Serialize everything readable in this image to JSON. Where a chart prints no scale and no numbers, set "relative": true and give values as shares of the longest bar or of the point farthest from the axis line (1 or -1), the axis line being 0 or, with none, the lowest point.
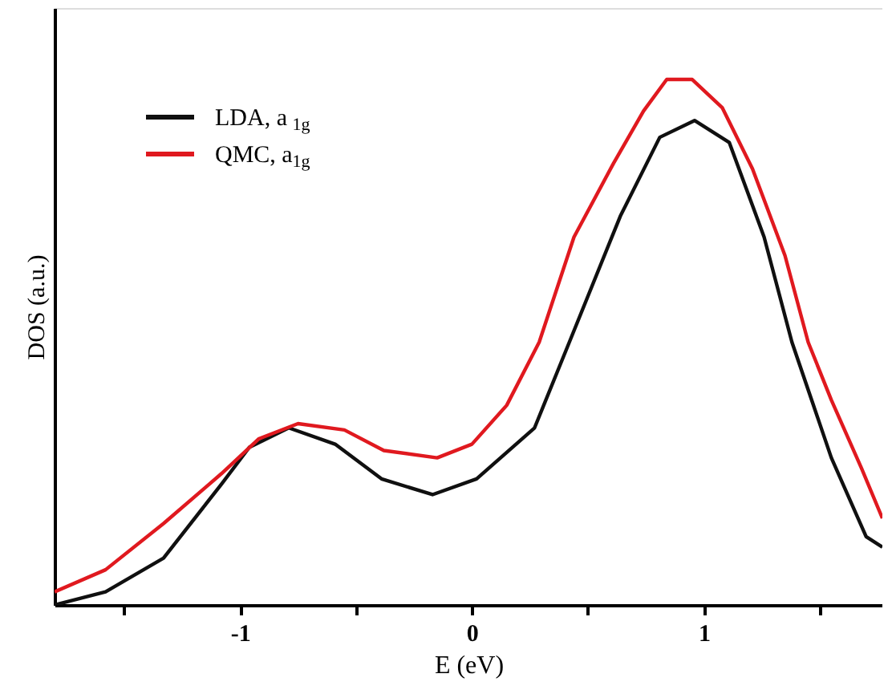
{
  "chart_data": {
    "type": "line",
    "relative": true,
    "xlabel": "E (eV)",
    "ylabel": "DOS (a.u.)",
    "xlim": [
      -1.8,
      1.77
    ],
    "xticks": [
      {
        "value": -1.5,
        "label": null
      },
      -1,
      {
        "value": -0.5,
        "label": null
      },
      0,
      {
        "value": 0.5,
        "label": null
      },
      1,
      {
        "value": 1.5,
        "label": null
      }
    ],
    "legend": "top left",
    "grid": false,
    "marker": "none",
    "line_style": "solid",
    "series": [
      {
        "name": "LDA, a$_{1g}$",
        "color": "#101010",
        "x": [
          -1.8,
          -1.58,
          -1.33,
          -1.08,
          -0.96,
          -0.79,
          -0.59,
          -0.39,
          -0.17,
          0.02,
          0.27,
          0.42,
          0.64,
          0.81,
          0.96,
          1.11,
          1.26,
          1.38,
          1.55,
          1.7,
          1.77
        ],
        "values": [
          0,
          0.025,
          0.089,
          0.23,
          0.3,
          0.337,
          0.306,
          0.24,
          0.21,
          0.24,
          0.337,
          0.5,
          0.74,
          0.89,
          0.922,
          0.88,
          0.7,
          0.5,
          0.28,
          0.13,
          0.11
        ]
      },
      {
        "name": "QMC, a$_{1g}$",
        "color": "#e0191f",
        "x": [
          -1.8,
          -1.58,
          -1.33,
          -1.08,
          -0.92,
          -0.75,
          -0.55,
          -0.38,
          -0.15,
          0.0,
          0.15,
          0.29,
          0.44,
          0.61,
          0.74,
          0.84,
          0.95,
          1.08,
          1.21,
          1.35,
          1.45,
          1.55,
          1.68,
          1.77
        ],
        "values": [
          0.025,
          0.067,
          0.155,
          0.25,
          0.316,
          0.345,
          0.333,
          0.294,
          0.28,
          0.306,
          0.38,
          0.5,
          0.7,
          0.84,
          0.94,
          1.0,
          1.0,
          0.946,
          0.83,
          0.665,
          0.5,
          0.39,
          0.26,
          0.165
        ]
      }
    ]
  }
}
